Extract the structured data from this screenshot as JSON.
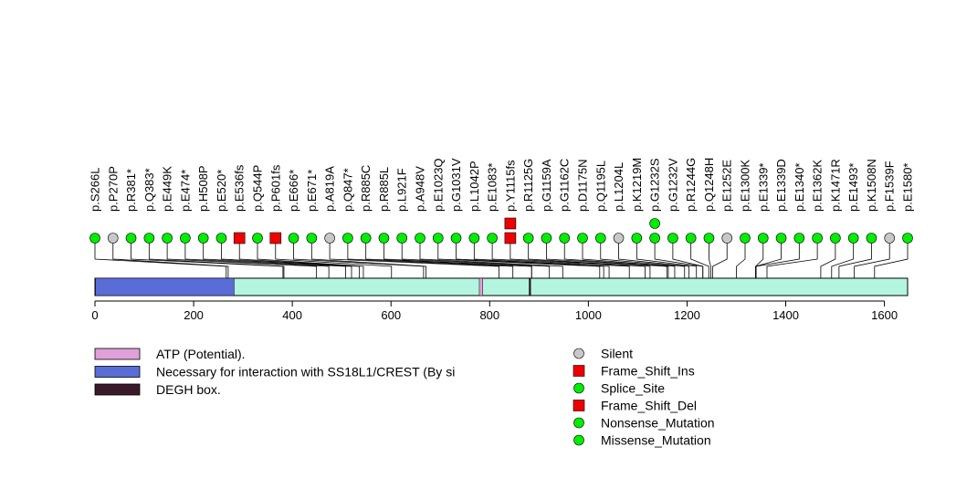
{
  "chart_data": {
    "type": "lollipop",
    "title": "",
    "xlabel": "",
    "ylabel": "",
    "protein_length": 1647,
    "x_ticks": [
      0,
      200,
      400,
      600,
      800,
      1000,
      1200,
      1400,
      1600
    ],
    "domains": [
      {
        "name": "Necessary for interaction with SS18L1/CREST (By si",
        "start": 1,
        "end": 282,
        "color": "#5a6cd6"
      },
      {
        "name": "ATP (Potential).",
        "start": 779,
        "end": 786,
        "color": "#e0a0d8"
      },
      {
        "name": "DEGH box.",
        "start": 880,
        "end": 883,
        "color": "#3a1a2a"
      }
    ],
    "mutations": [
      {
        "label": "p.S266L",
        "pos": 266,
        "type": "Missense_Mutation",
        "stack": 1
      },
      {
        "label": "p.P270P",
        "pos": 270,
        "type": "Silent",
        "stack": 1
      },
      {
        "label": "p.R381*",
        "pos": 381,
        "type": "Nonsense_Mutation",
        "stack": 1
      },
      {
        "label": "p.Q383*",
        "pos": 383,
        "type": "Nonsense_Mutation",
        "stack": 1
      },
      {
        "label": "p.E449K",
        "pos": 449,
        "type": "Missense_Mutation",
        "stack": 1
      },
      {
        "label": "p.E474*",
        "pos": 474,
        "type": "Nonsense_Mutation",
        "stack": 1
      },
      {
        "label": "p.H508P",
        "pos": 508,
        "type": "Missense_Mutation",
        "stack": 1
      },
      {
        "label": "p.E520*",
        "pos": 520,
        "type": "Nonsense_Mutation",
        "stack": 1
      },
      {
        "label": "p.E536fs",
        "pos": 536,
        "type": "Frame_Shift_Del",
        "stack": 1
      },
      {
        "label": "p.Q544P",
        "pos": 544,
        "type": "Missense_Mutation",
        "stack": 1
      },
      {
        "label": "p.P601fs",
        "pos": 601,
        "type": "Frame_Shift_Del",
        "stack": 1
      },
      {
        "label": "p.E666*",
        "pos": 666,
        "type": "Nonsense_Mutation",
        "stack": 1
      },
      {
        "label": "p.E671*",
        "pos": 671,
        "type": "Nonsense_Mutation",
        "stack": 1
      },
      {
        "label": "p.A819A",
        "pos": 819,
        "type": "Silent",
        "stack": 1
      },
      {
        "label": "p.Q847*",
        "pos": 847,
        "type": "Nonsense_Mutation",
        "stack": 1
      },
      {
        "label": "p.R885C",
        "pos": 885,
        "type": "Missense_Mutation",
        "stack": 1
      },
      {
        "label": "p.R885L",
        "pos": 885,
        "type": "Missense_Mutation",
        "stack": 1
      },
      {
        "label": "p.L921F",
        "pos": 921,
        "type": "Missense_Mutation",
        "stack": 1
      },
      {
        "label": "p.A948V",
        "pos": 948,
        "type": "Missense_Mutation",
        "stack": 1
      },
      {
        "label": "p.E1023Q",
        "pos": 1023,
        "type": "Missense_Mutation",
        "stack": 1
      },
      {
        "label": "p.G1031V",
        "pos": 1031,
        "type": "Missense_Mutation",
        "stack": 1
      },
      {
        "label": "p.L1042P",
        "pos": 1042,
        "type": "Missense_Mutation",
        "stack": 1
      },
      {
        "label": "p.E1083*",
        "pos": 1083,
        "type": "Nonsense_Mutation",
        "stack": 1
      },
      {
        "label": "p.Y1115fs",
        "pos": 1115,
        "type": "Frame_Shift_Ins",
        "stack": 2
      },
      {
        "label": "p.R1125G",
        "pos": 1125,
        "type": "Missense_Mutation",
        "stack": 1
      },
      {
        "label": "p.G1159A",
        "pos": 1159,
        "type": "Missense_Mutation",
        "stack": 1
      },
      {
        "label": "p.G1162C",
        "pos": 1162,
        "type": "Missense_Mutation",
        "stack": 1
      },
      {
        "label": "p.D1175N",
        "pos": 1175,
        "type": "Missense_Mutation",
        "stack": 1
      },
      {
        "label": "p.Q1195L",
        "pos": 1195,
        "type": "Missense_Mutation",
        "stack": 1
      },
      {
        "label": "p.L1204L",
        "pos": 1204,
        "type": "Silent",
        "stack": 1
      },
      {
        "label": "p.K1219M",
        "pos": 1219,
        "type": "Missense_Mutation",
        "stack": 1
      },
      {
        "label": "p.G1232S",
        "pos": 1232,
        "type": "Missense_Mutation",
        "stack": 2
      },
      {
        "label": "p.G1232V",
        "pos": 1232,
        "type": "Missense_Mutation",
        "stack": 1
      },
      {
        "label": "p.R1244G",
        "pos": 1244,
        "type": "Missense_Mutation",
        "stack": 1
      },
      {
        "label": "p.Q1248H",
        "pos": 1248,
        "type": "Missense_Mutation",
        "stack": 1
      },
      {
        "label": "p.E1252E",
        "pos": 1252,
        "type": "Silent",
        "stack": 1
      },
      {
        "label": "p.E1300K",
        "pos": 1300,
        "type": "Missense_Mutation",
        "stack": 1
      },
      {
        "label": "p.E1339*",
        "pos": 1339,
        "type": "Nonsense_Mutation",
        "stack": 1
      },
      {
        "label": "p.E1339D",
        "pos": 1339,
        "type": "Missense_Mutation",
        "stack": 1
      },
      {
        "label": "p.E1340*",
        "pos": 1340,
        "type": "Nonsense_Mutation",
        "stack": 1
      },
      {
        "label": "p.E1362K",
        "pos": 1362,
        "type": "Missense_Mutation",
        "stack": 1
      },
      {
        "label": "p.K1471R",
        "pos": 1471,
        "type": "Missense_Mutation",
        "stack": 1
      },
      {
        "label": "p.E1493*",
        "pos": 1493,
        "type": "Nonsense_Mutation",
        "stack": 1
      },
      {
        "label": "p.K1508N",
        "pos": 1508,
        "type": "Missense_Mutation",
        "stack": 1
      },
      {
        "label": "p.F1539F",
        "pos": 1539,
        "type": "Silent",
        "stack": 1
      },
      {
        "label": "p.E1580*",
        "pos": 1580,
        "type": "Nonsense_Mutation",
        "stack": 1
      }
    ],
    "domain_legend": [
      {
        "name": "ATP (Potential).",
        "color": "#e0a0d8"
      },
      {
        "name": "Necessary for interaction with SS18L1/CREST (By si",
        "color": "#5a6cd6"
      },
      {
        "name": "DEGH box.",
        "color": "#3a1a2a"
      }
    ],
    "mutation_legend": [
      {
        "type": "Silent",
        "shape": "circle",
        "color": "#c8c8c8"
      },
      {
        "type": "Frame_Shift_Ins",
        "shape": "square",
        "color": "#ee0000"
      },
      {
        "type": "Splice_Site",
        "shape": "circle",
        "color": "#00ee00"
      },
      {
        "type": "Frame_Shift_Del",
        "shape": "square",
        "color": "#ee0000"
      },
      {
        "type": "Nonsense_Mutation",
        "shape": "circle",
        "color": "#00ee00"
      },
      {
        "type": "Missense_Mutation",
        "shape": "circle",
        "color": "#00ee00"
      }
    ],
    "colors": {
      "protein_bar": "#b4f5e0",
      "silent": "#c8c8c8",
      "green": "#00ee00",
      "red": "#ee0000"
    }
  }
}
